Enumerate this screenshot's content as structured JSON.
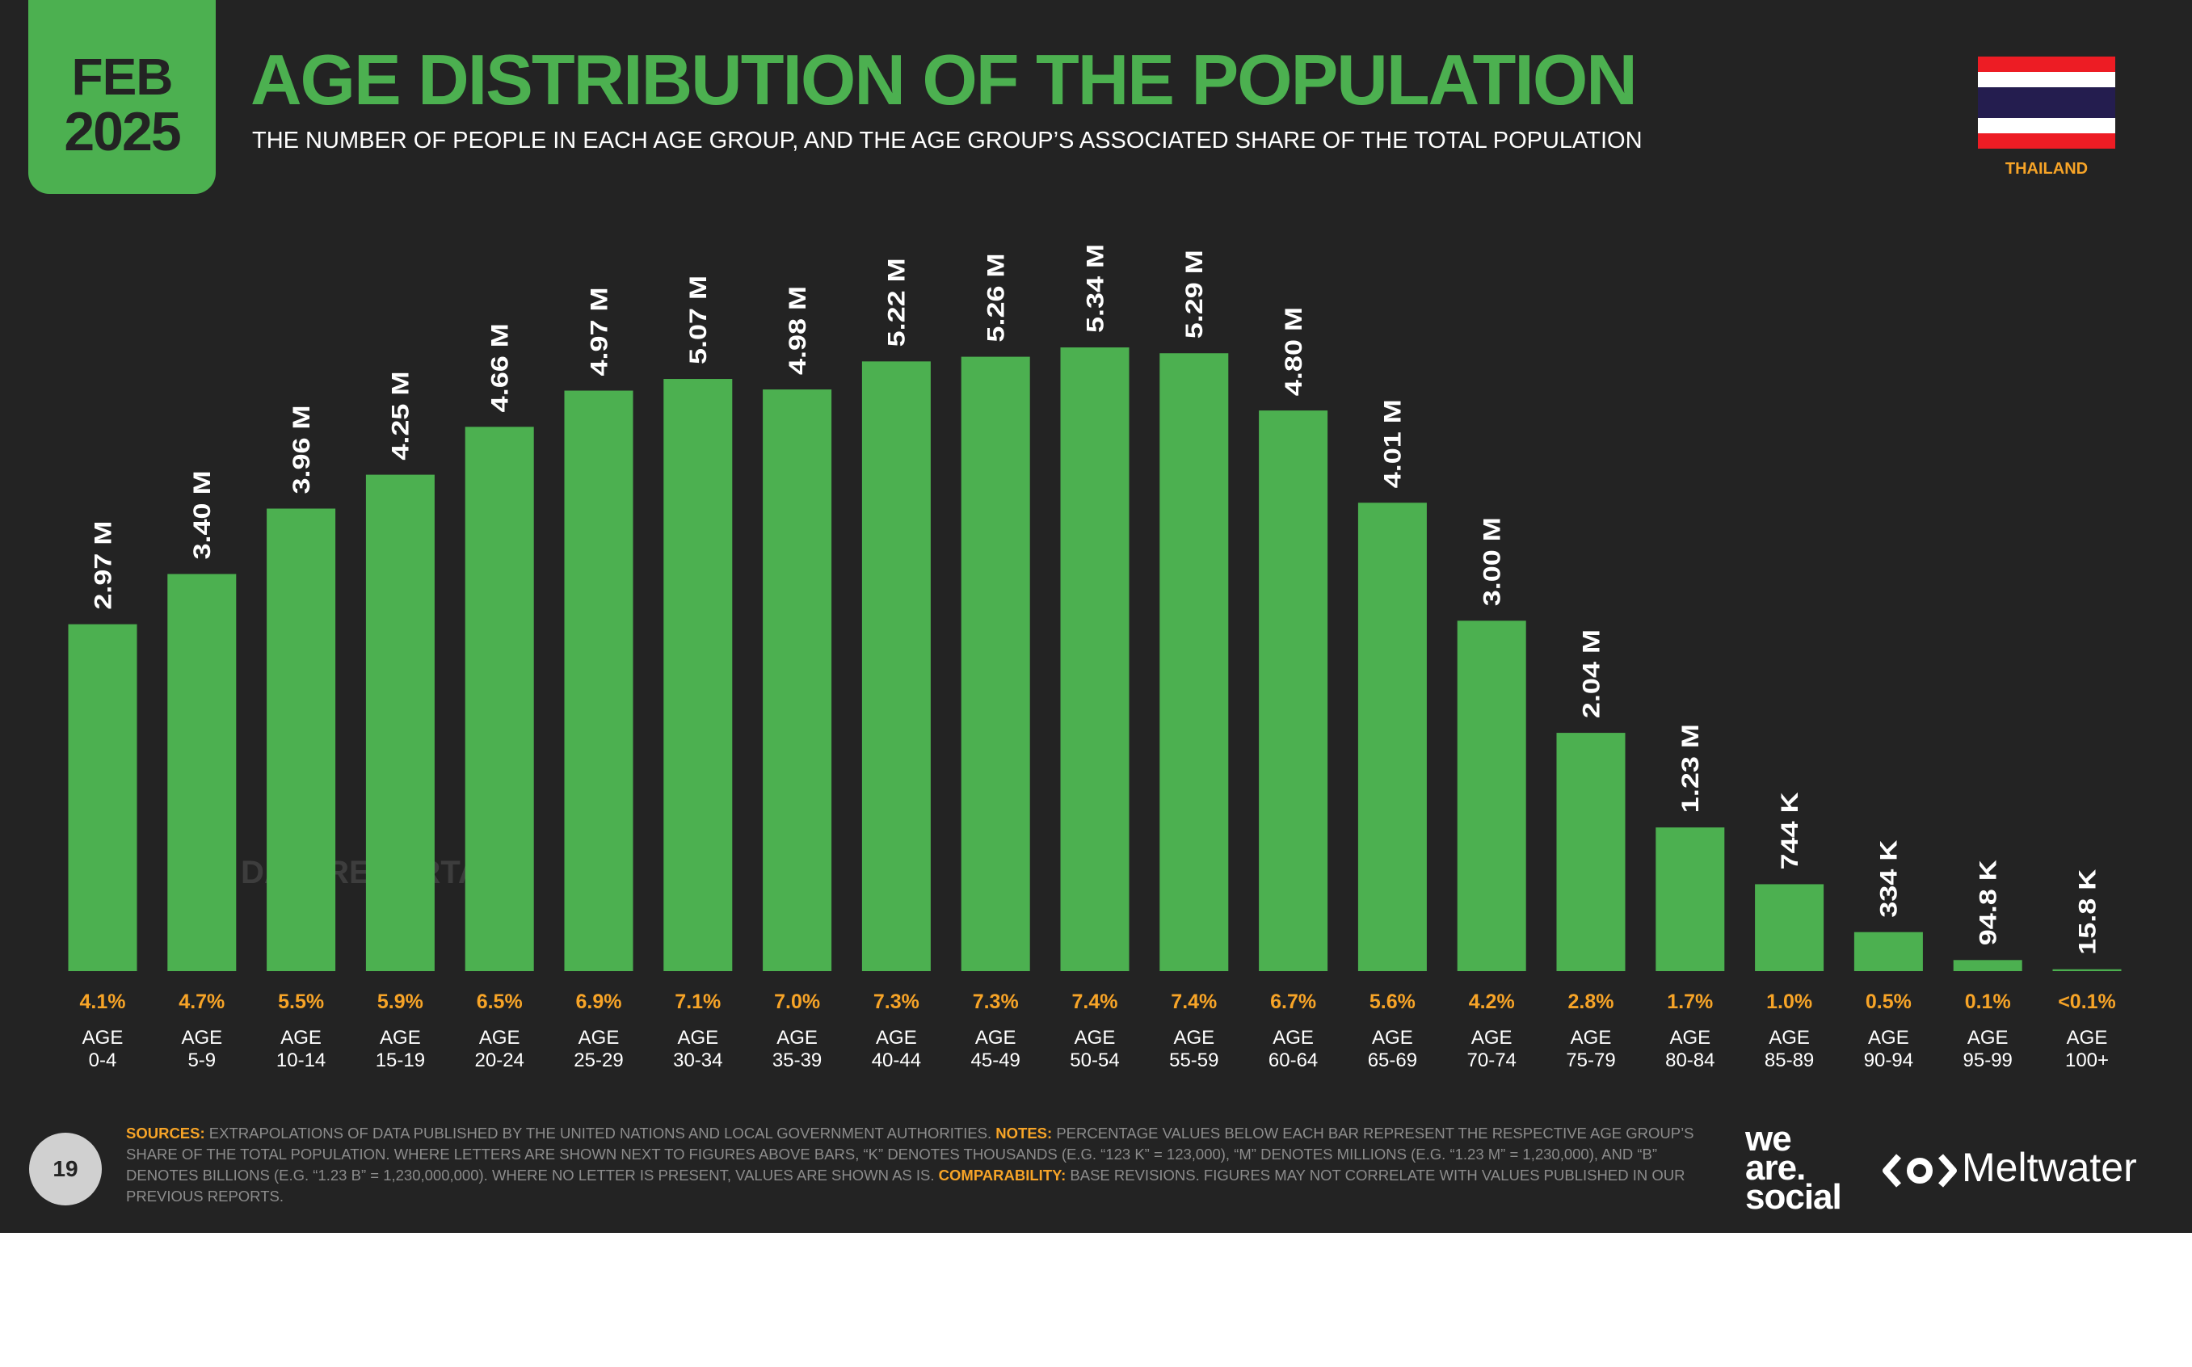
{
  "header": {
    "month": "FEB",
    "year": "2025",
    "title": "AGE DISTRIBUTION OF THE POPULATION",
    "subtitle": "THE NUMBER OF PEOPLE IN EACH AGE GROUP, AND THE AGE GROUP’S ASSOCIATED SHARE OF THE TOTAL POPULATION",
    "country": "THAILAND"
  },
  "watermark": "DATAREPORTAL",
  "colors": {
    "background": "#232323",
    "accent": "#4cb050",
    "highlight": "#f7a427",
    "bar_label": "#ffffff",
    "flag_red": "#ed1c24",
    "flag_white": "#ffffff",
    "flag_blue": "#241d4f"
  },
  "chart_data": {
    "type": "bar",
    "title": "AGE DISTRIBUTION OF THE POPULATION",
    "categories": [
      "0-4",
      "5-9",
      "10-14",
      "15-19",
      "20-24",
      "25-29",
      "30-34",
      "35-39",
      "40-44",
      "45-49",
      "50-54",
      "55-59",
      "60-64",
      "65-69",
      "70-74",
      "75-79",
      "80-84",
      "85-89",
      "90-94",
      "95-99",
      "100+"
    ],
    "category_prefix": "AGE",
    "values": [
      2970000,
      3400000,
      3960000,
      4250000,
      4660000,
      4970000,
      5070000,
      4980000,
      5220000,
      5260000,
      5340000,
      5290000,
      4800000,
      4010000,
      3000000,
      2040000,
      1230000,
      744000,
      334000,
      94800,
      15800
    ],
    "value_labels": [
      "2.97 M",
      "3.40 M",
      "3.96 M",
      "4.25 M",
      "4.66 M",
      "4.97 M",
      "5.07 M",
      "4.98 M",
      "5.22 M",
      "5.26 M",
      "5.34 M",
      "5.29 M",
      "4.80 M",
      "4.01 M",
      "3.00 M",
      "2.04 M",
      "1.23 M",
      "744 K",
      "334 K",
      "94.8 K",
      "15.8 K"
    ],
    "share_labels": [
      "4.1%",
      "4.7%",
      "5.5%",
      "5.9%",
      "6.5%",
      "6.9%",
      "7.1%",
      "7.0%",
      "7.3%",
      "7.3%",
      "7.4%",
      "7.4%",
      "6.7%",
      "5.6%",
      "4.2%",
      "2.8%",
      "1.7%",
      "1.0%",
      "0.5%",
      "0.1%",
      "<0.1%"
    ],
    "ylim": [
      0,
      5340000
    ],
    "grid": false,
    "legend": "none"
  },
  "footer": {
    "page_number": "19",
    "sources_label": "SOURCES:",
    "sources_text": "EXTRAPOLATIONS OF DATA PUBLISHED BY THE UNITED NATIONS AND LOCAL GOVERNMENT AUTHORITIES.",
    "notes_label": "NOTES:",
    "notes_text": "PERCENTAGE VALUES BELOW EACH BAR REPRESENT THE RESPECTIVE AGE GROUP’S SHARE OF THE TOTAL POPULATION. WHERE LETTERS ARE SHOWN NEXT TO FIGURES ABOVE BARS, “K” DENOTES THOUSANDS (E.G. “123 K” = 123,000), “M” DENOTES MILLIONS (E.G. “1.23 M” = 1,230,000), AND “B” DENOTES BILLIONS (E.G. “1.23 B” = 1,230,000,000). WHERE NO LETTER IS PRESENT, VALUES ARE SHOWN AS IS.",
    "comparability_label": "COMPARABILITY:",
    "comparability_text": "BASE REVISIONS. FIGURES MAY NOT CORRELATE WITH VALUES PUBLISHED IN OUR PREVIOUS REPORTS.",
    "logo_line1": "we",
    "logo_line2": "are.",
    "logo_line3": "social",
    "meltwater": "Meltwater"
  }
}
